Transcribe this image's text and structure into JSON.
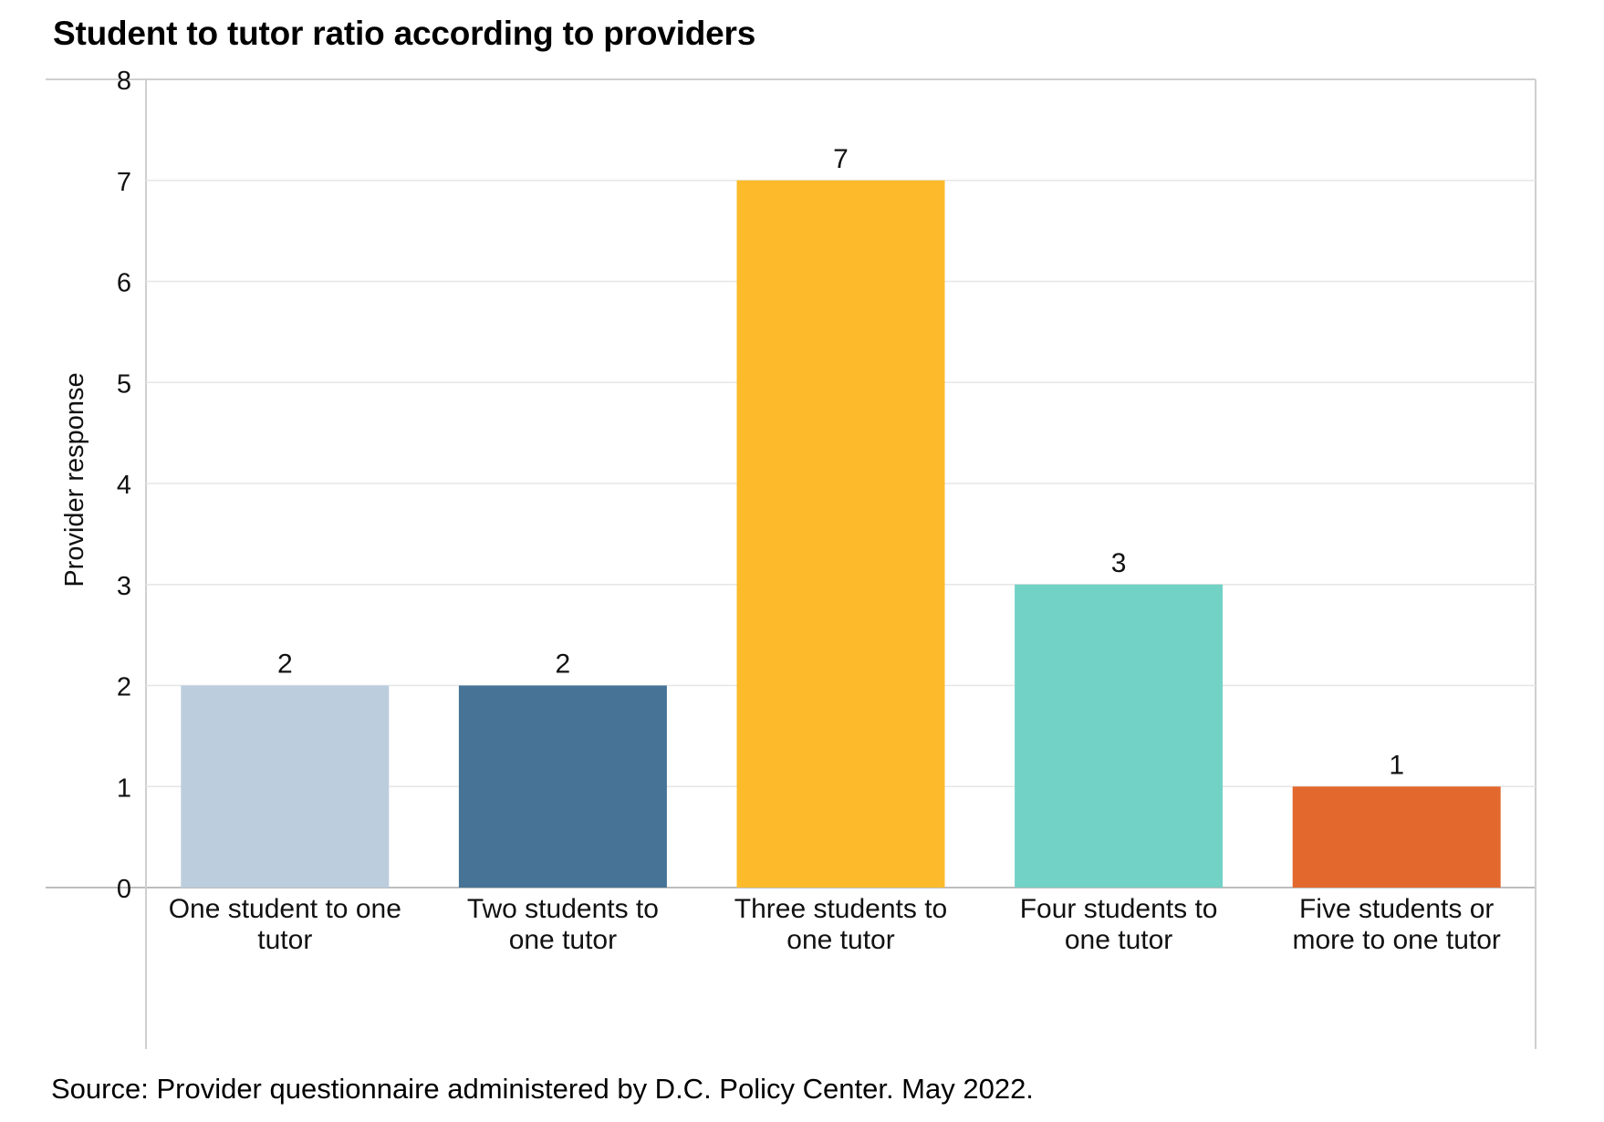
{
  "title": "Student to tutor ratio according to providers",
  "source": "Source: Provider questionnaire administered by D.C. Policy Center. May 2022.",
  "chart_data": {
    "type": "bar",
    "title": "Student to tutor ratio according to providers",
    "xlabel": "",
    "ylabel": "Provider response",
    "ylim": [
      0,
      8
    ],
    "yticks": [
      0,
      1,
      2,
      3,
      4,
      5,
      6,
      7,
      8
    ],
    "grid": true,
    "categories": [
      [
        "One student to one",
        "tutor"
      ],
      [
        "Two students to",
        "one tutor"
      ],
      [
        "Three students to",
        "one tutor"
      ],
      [
        "Four students to",
        "one tutor"
      ],
      [
        "Five students or",
        "more to one tutor"
      ]
    ],
    "values": [
      2,
      2,
      7,
      3,
      1
    ],
    "colors": [
      "#bccdde",
      "#467396",
      "#fdbb2b",
      "#72d2c6",
      "#e3682d"
    ],
    "data_labels": true
  }
}
